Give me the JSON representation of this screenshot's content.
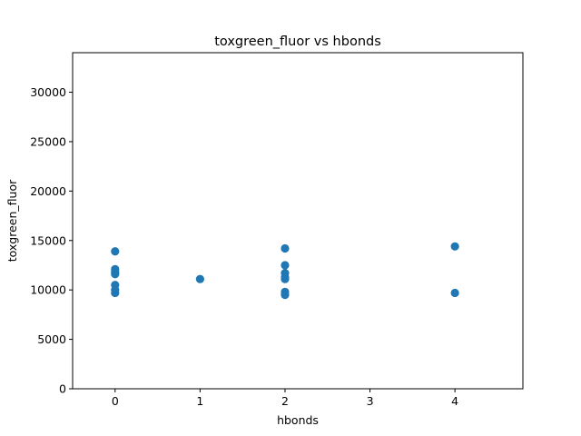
{
  "chart_data": {
    "type": "scatter",
    "title": "toxgreen_fluor vs hbonds",
    "xlabel": "hbonds",
    "ylabel": "toxgreen_fluor",
    "xlim": [
      -0.5,
      4.8
    ],
    "ylim": [
      0,
      34000
    ],
    "xticks": [
      0,
      1,
      2,
      3,
      4
    ],
    "yticks": [
      0,
      5000,
      10000,
      15000,
      20000,
      25000,
      30000
    ],
    "grid": false,
    "marker_color": "#1f77b4",
    "series": [
      {
        "points": [
          {
            "x": 0,
            "y": 13900
          },
          {
            "x": 0,
            "y": 12100
          },
          {
            "x": 0,
            "y": 11800
          },
          {
            "x": 0,
            "y": 11600
          },
          {
            "x": 0,
            "y": 10500
          },
          {
            "x": 0,
            "y": 10000
          },
          {
            "x": 0,
            "y": 9700
          },
          {
            "x": 1,
            "y": 11100
          },
          {
            "x": 2,
            "y": 14200
          },
          {
            "x": 2,
            "y": 12500
          },
          {
            "x": 2,
            "y": 11700
          },
          {
            "x": 2,
            "y": 11300
          },
          {
            "x": 2,
            "y": 11100
          },
          {
            "x": 2,
            "y": 9800
          },
          {
            "x": 2,
            "y": 9500
          },
          {
            "x": 4,
            "y": 14400
          },
          {
            "x": 4,
            "y": 9700
          }
        ]
      }
    ]
  }
}
